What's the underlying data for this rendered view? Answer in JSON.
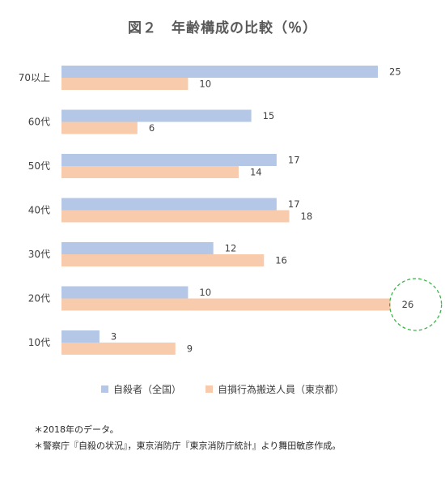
{
  "chart_data": {
    "type": "bar",
    "orientation": "horizontal",
    "title": "図２　年齢構成の比較（％）",
    "categories": [
      "70以上",
      "60代",
      "50代",
      "40代",
      "30代",
      "20代",
      "10代"
    ],
    "series": [
      {
        "name": "自殺者（全国）",
        "color": "#b4c7e7",
        "values": [
          25,
          15,
          17,
          17,
          12,
          10,
          3
        ]
      },
      {
        "name": "自損行為搬送人員（東京都）",
        "color": "#f8cbad",
        "values": [
          10,
          6,
          14,
          18,
          16,
          26,
          9
        ]
      }
    ],
    "xlim": [
      0,
      28
    ],
    "grid": false,
    "legend_position": "bottom",
    "highlight": {
      "series_index": 1,
      "category": "20代",
      "style": "green dashed circle"
    }
  },
  "notes": [
    "＊2018年のデータ。",
    "＊警察庁『自殺の状況』，東京消防庁『東京消防庁統計』より舞田敏彦作成。"
  ]
}
